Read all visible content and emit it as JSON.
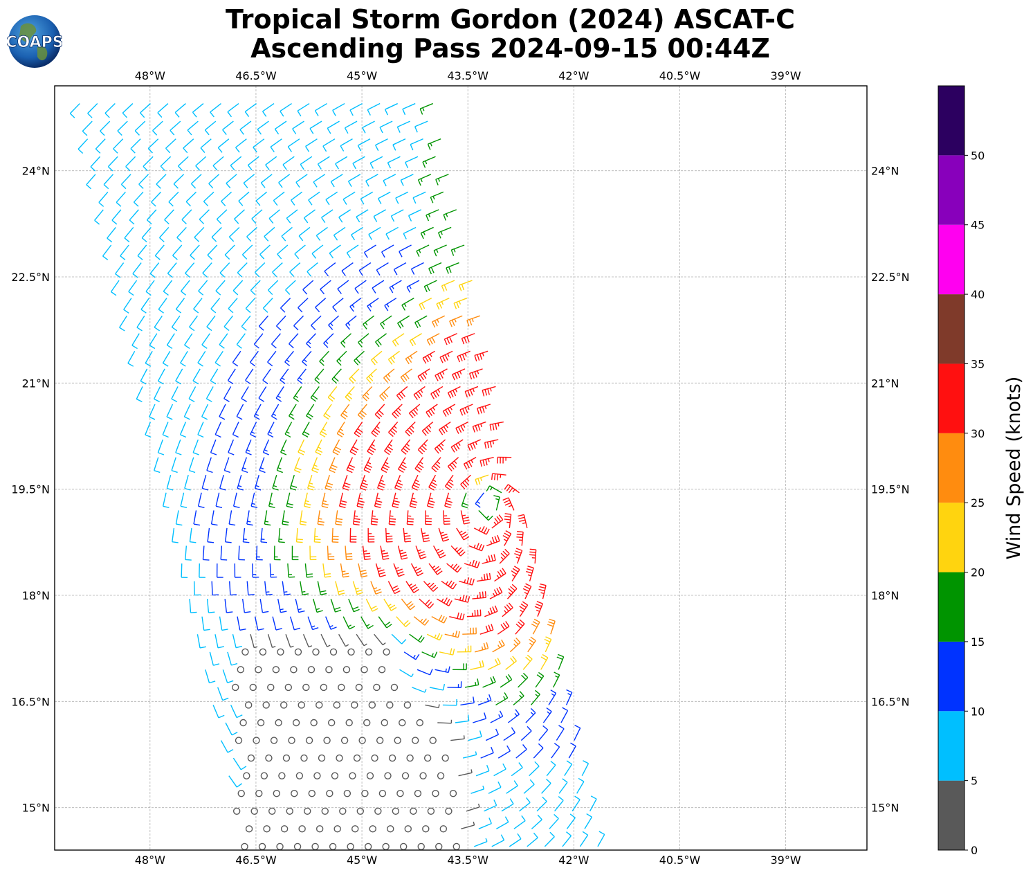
{
  "title_line1": "Tropical Storm Gordon (2024) ASCAT-C",
  "title_line2": "Ascending Pass 2024-09-15 00:44Z",
  "logo_text": "COAPS",
  "map": {
    "lon_ticks": [
      "48°W",
      "46.5°W",
      "45°W",
      "43.5°W",
      "42°W",
      "40.5°W",
      "39°W"
    ],
    "lat_ticks": [
      "24°N",
      "22.5°N",
      "21°N",
      "19.5°N",
      "18°N",
      "16.5°N",
      "15°N"
    ],
    "lon_range": [
      -49.35,
      -37.85
    ],
    "lat_range": [
      14.4,
      25.2
    ],
    "grid": true
  },
  "colorbar": {
    "label": "Wind Speed (knots)",
    "ticks": [
      "0",
      "5",
      "10",
      "15",
      "20",
      "25",
      "30",
      "35",
      "40",
      "45",
      "50"
    ],
    "bins": [
      {
        "min": 0,
        "max": 5,
        "color": "#595959"
      },
      {
        "min": 5,
        "max": 10,
        "color": "#00bfff"
      },
      {
        "min": 10,
        "max": 15,
        "color": "#0033ff"
      },
      {
        "min": 15,
        "max": 20,
        "color": "#009400"
      },
      {
        "min": 20,
        "max": 25,
        "color": "#ffd40f"
      },
      {
        "min": 25,
        "max": 30,
        "color": "#ff8c0f"
      },
      {
        "min": 30,
        "max": 35,
        "color": "#ff1010"
      },
      {
        "min": 35,
        "max": 40,
        "color": "#7f3a2a"
      },
      {
        "min": 40,
        "max": 45,
        "color": "#ff00f0"
      },
      {
        "min": 45,
        "max": 50,
        "color": "#8800bb"
      },
      {
        "min": 50,
        "max": 55,
        "color": "#2c0060"
      }
    ]
  },
  "chart_data": {
    "type": "wind-barbs",
    "storm_center": {
      "lon": -43.2,
      "lat": 19.4
    },
    "swath": {
      "lat_min": 14.4,
      "lat_max": 25.2,
      "west_edge_lon_at_top": -49.05,
      "west_edge_lon_at_bottom": -46.65,
      "width_deg": 5.1
    },
    "speed_regions_knots": [
      {
        "area": "north-west swath",
        "speed_range": [
          5,
          10
        ]
      },
      {
        "area": "north swath",
        "speed_range": [
          10,
          15
        ]
      },
      {
        "area": "central-west band",
        "speed_range": [
          15,
          20
        ]
      },
      {
        "area": "north-east of center",
        "speed_range": [
          20,
          30
        ]
      },
      {
        "area": "just north of center",
        "speed_range": [
          30,
          35
        ]
      },
      {
        "area": "south-central",
        "speed_range": [
          0,
          5
        ]
      },
      {
        "area": "south-east swath",
        "speed_range": [
          10,
          15
        ]
      }
    ]
  }
}
